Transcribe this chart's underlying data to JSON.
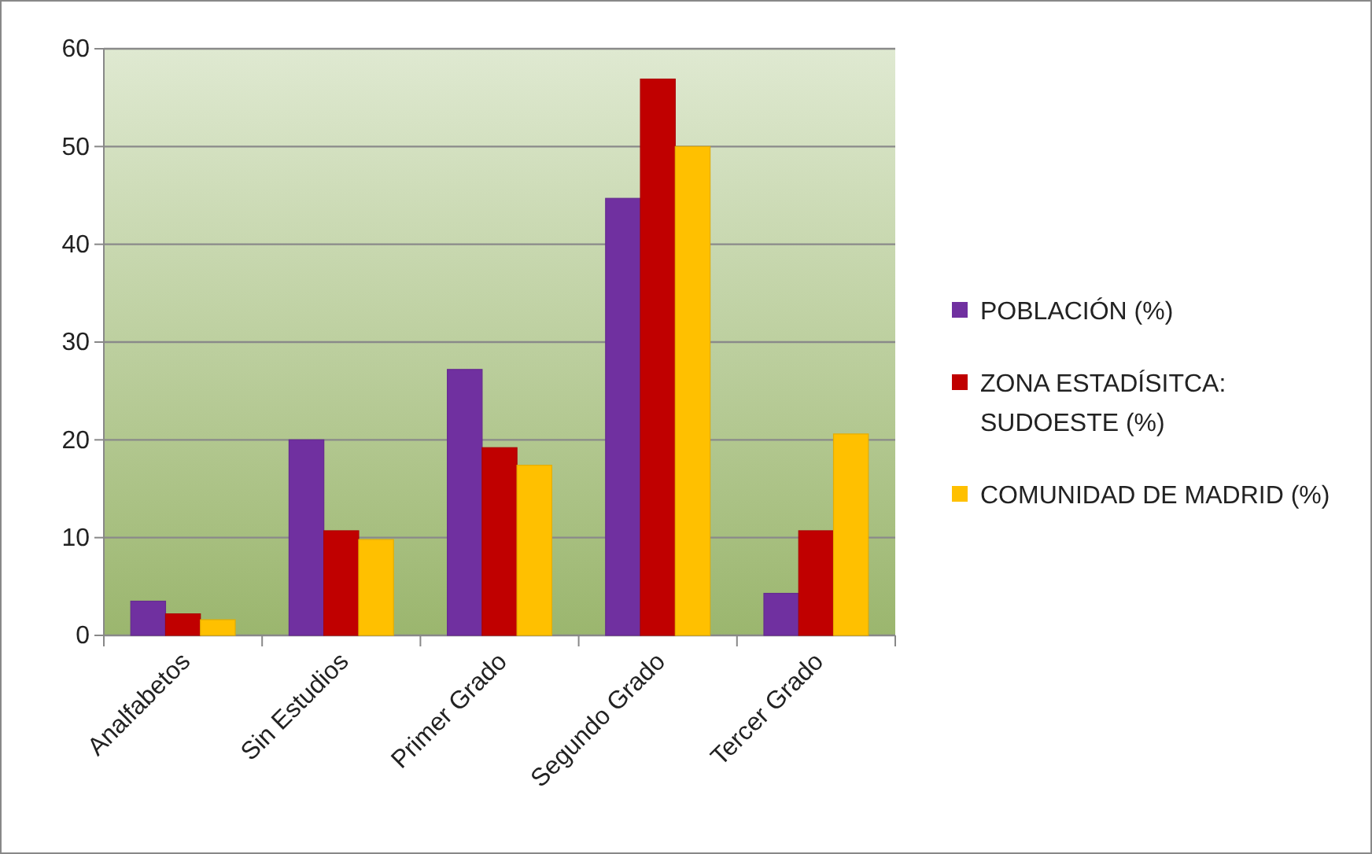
{
  "chart_data": {
    "type": "bar",
    "categories": [
      "Analfabetos",
      "Sin Estudios",
      "Primer Grado",
      "Segundo Grado",
      "Tercer Grado"
    ],
    "series": [
      {
        "name": "POBLACIÓN (%)",
        "color": "#7030a0",
        "values": [
          3.5,
          20,
          27.2,
          44.7,
          4.3
        ]
      },
      {
        "name": "ZONA ESTADÍSITCA: SUDOESTE (%)",
        "color": "#c00000",
        "values": [
          2.2,
          10.7,
          19.2,
          56.9,
          10.7
        ]
      },
      {
        "name": "COMUNIDAD DE MADRID (%)",
        "color": "#ffc000",
        "values": [
          1.6,
          9.8,
          17.4,
          50,
          20.6
        ]
      }
    ],
    "ylim": [
      0,
      60
    ],
    "yticks": [
      0,
      10,
      20,
      30,
      40,
      50,
      60
    ],
    "grid": "y",
    "legend": "right"
  }
}
